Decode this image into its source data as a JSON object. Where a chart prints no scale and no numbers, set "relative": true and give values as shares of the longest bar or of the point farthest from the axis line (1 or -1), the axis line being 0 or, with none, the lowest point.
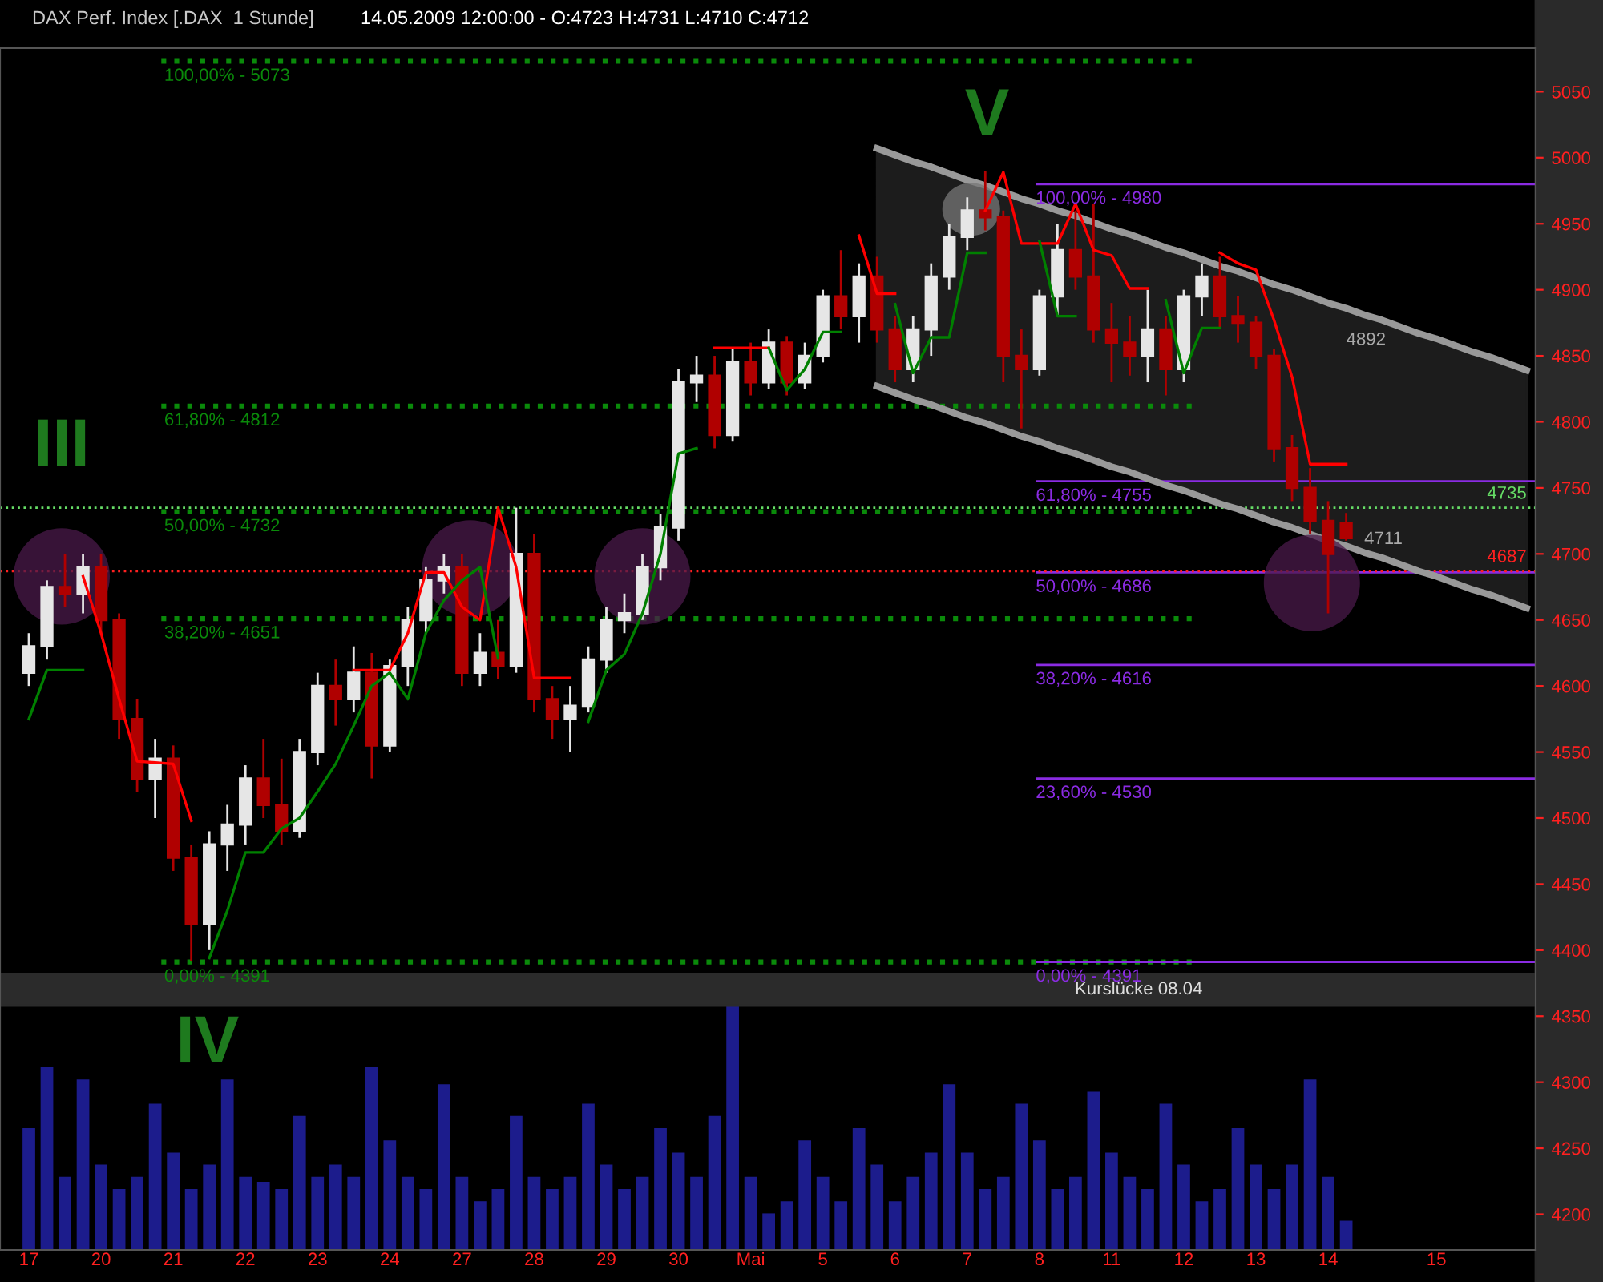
{
  "chart_data": [
    {
      "type": "candlestick",
      "title": "DAX Perf. Index [.DAX  1 Stunde]",
      "subtitle": "14.05.2009 12:00:00 - O:4723 H:4731 L:4710 C:4712",
      "categories": [
        "17",
        null,
        null,
        null,
        "20",
        null,
        null,
        null,
        "21",
        null,
        null,
        null,
        "22",
        null,
        null,
        null,
        "23",
        null,
        null,
        null,
        "24",
        null,
        null,
        null,
        "27",
        null,
        null,
        null,
        "28",
        null,
        null,
        null,
        "29",
        null,
        null,
        null,
        "30",
        null,
        null,
        null,
        "Mai",
        null,
        null,
        null,
        "5",
        null,
        null,
        null,
        "6",
        null,
        null,
        null,
        "7",
        null,
        null,
        null,
        "8",
        null,
        null,
        null,
        "11",
        null,
        null,
        null,
        "12",
        null,
        null,
        null,
        "13",
        null,
        null,
        null,
        "14",
        null,
        null,
        null,
        null,
        null,
        "15",
        null,
        null,
        null,
        null,
        null
      ],
      "ohlc": [
        [
          4610,
          4640,
          4600,
          4630
        ],
        [
          4630,
          4680,
          4620,
          4675
        ],
        [
          4675,
          4700,
          4660,
          4670
        ],
        [
          4670,
          4700,
          4655,
          4690
        ],
        [
          4690,
          4700,
          4640,
          4650
        ],
        [
          4650,
          4655,
          4560,
          4575
        ],
        [
          4575,
          4590,
          4520,
          4530
        ],
        [
          4530,
          4560,
          4500,
          4545
        ],
        [
          4545,
          4555,
          4460,
          4470
        ],
        [
          4470,
          4480,
          4392,
          4420
        ],
        [
          4420,
          4490,
          4400,
          4480
        ],
        [
          4480,
          4510,
          4460,
          4495
        ],
        [
          4495,
          4540,
          4480,
          4530
        ],
        [
          4530,
          4560,
          4500,
          4510
        ],
        [
          4510,
          4545,
          4480,
          4490
        ],
        [
          4490,
          4560,
          4485,
          4550
        ],
        [
          4550,
          4610,
          4540,
          4600
        ],
        [
          4600,
          4620,
          4570,
          4590
        ],
        [
          4590,
          4630,
          4580,
          4610
        ],
        [
          4610,
          4625,
          4530,
          4555
        ],
        [
          4555,
          4620,
          4550,
          4615
        ],
        [
          4615,
          4660,
          4600,
          4650
        ],
        [
          4650,
          4690,
          4640,
          4680
        ],
        [
          4680,
          4700,
          4670,
          4690
        ],
        [
          4690,
          4700,
          4600,
          4610
        ],
        [
          4610,
          4640,
          4600,
          4625
        ],
        [
          4625,
          4650,
          4605,
          4615
        ],
        [
          4615,
          4735,
          4610,
          4700
        ],
        [
          4700,
          4715,
          4580,
          4590
        ],
        [
          4590,
          4600,
          4560,
          4575
        ],
        [
          4575,
          4600,
          4550,
          4585
        ],
        [
          4585,
          4630,
          4580,
          4620
        ],
        [
          4620,
          4660,
          4610,
          4650
        ],
        [
          4650,
          4670,
          4640,
          4655
        ],
        [
          4655,
          4700,
          4650,
          4690
        ],
        [
          4690,
          4730,
          4680,
          4720
        ],
        [
          4720,
          4840,
          4710,
          4830
        ],
        [
          4830,
          4850,
          4815,
          4835
        ],
        [
          4835,
          4850,
          4780,
          4790
        ],
        [
          4790,
          4855,
          4785,
          4845
        ],
        [
          4845,
          4860,
          4820,
          4830
        ],
        [
          4830,
          4870,
          4825,
          4860
        ],
        [
          4860,
          4865,
          4820,
          4830
        ],
        [
          4830,
          4860,
          4825,
          4850
        ],
        [
          4850,
          4900,
          4845,
          4895
        ],
        [
          4895,
          4930,
          4870,
          4880
        ],
        [
          4880,
          4920,
          4860,
          4910
        ],
        [
          4910,
          4925,
          4860,
          4870
        ],
        [
          4870,
          4880,
          4830,
          4840
        ],
        [
          4840,
          4880,
          4830,
          4870
        ],
        [
          4870,
          4920,
          4850,
          4910
        ],
        [
          4910,
          4950,
          4900,
          4940
        ],
        [
          4940,
          4970,
          4930,
          4960
        ],
        [
          4960,
          4990,
          4945,
          4955
        ],
        [
          4955,
          4960,
          4830,
          4850
        ],
        [
          4850,
          4870,
          4795,
          4840
        ],
        [
          4840,
          4900,
          4835,
          4895
        ],
        [
          4895,
          4950,
          4880,
          4930
        ],
        [
          4930,
          4960,
          4900,
          4910
        ],
        [
          4910,
          4965,
          4860,
          4870
        ],
        [
          4870,
          4890,
          4830,
          4860
        ],
        [
          4860,
          4880,
          4835,
          4850
        ],
        [
          4850,
          4900,
          4830,
          4870
        ],
        [
          4870,
          4880,
          4820,
          4840
        ],
        [
          4840,
          4900,
          4830,
          4895
        ],
        [
          4895,
          4920,
          4880,
          4910
        ],
        [
          4910,
          4925,
          4870,
          4880
        ],
        [
          4880,
          4895,
          4860,
          4875
        ],
        [
          4875,
          4880,
          4840,
          4850
        ],
        [
          4850,
          4855,
          4770,
          4780
        ],
        [
          4780,
          4790,
          4740,
          4750
        ],
        [
          4750,
          4765,
          4715,
          4725
        ],
        [
          4725,
          4740,
          4655,
          4700
        ],
        [
          4723,
          4731,
          4710,
          4712
        ],
        null,
        null,
        null,
        null,
        null,
        null,
        null,
        null,
        null,
        null
      ],
      "colors": [
        "#e6e6e6",
        "#e6e6e6",
        "#b00000",
        "#e6e6e6",
        "#b00000",
        "#b00000",
        "#b00000",
        "#e6e6e6",
        "#b00000",
        "#b00000",
        "#e6e6e6",
        "#e6e6e6",
        "#e6e6e6",
        "#b00000",
        "#b00000",
        "#e6e6e6",
        "#e6e6e6",
        "#b00000",
        "#e6e6e6",
        "#b00000",
        "#e6e6e6",
        "#e6e6e6",
        "#e6e6e6",
        "#e6e6e6",
        "#b00000",
        "#e6e6e6",
        "#b00000",
        "#e6e6e6",
        "#b00000",
        "#b00000",
        "#e6e6e6",
        "#e6e6e6",
        "#e6e6e6",
        "#e6e6e6",
        "#e6e6e6",
        "#e6e6e6",
        "#e6e6e6",
        "#e6e6e6",
        "#b00000",
        "#e6e6e6",
        "#b00000",
        "#e6e6e6",
        "#b00000",
        "#e6e6e6",
        "#e6e6e6",
        "#b00000",
        "#e6e6e6",
        "#b00000",
        "#b00000",
        "#e6e6e6",
        "#e6e6e6",
        "#e6e6e6",
        "#e6e6e6",
        "#b00000",
        "#b00000",
        "#b00000",
        "#e6e6e6",
        "#e6e6e6",
        "#b00000",
        "#b00000",
        "#b00000",
        "#b00000",
        "#e6e6e6",
        "#b00000",
        "#e6e6e6",
        "#e6e6e6",
        "#b00000",
        "#b00000",
        "#b00000",
        "#b00000",
        "#b00000",
        "#b00000",
        "#b00000",
        "#b00000",
        null,
        null,
        null,
        null,
        null,
        null,
        null,
        null,
        null,
        null
      ],
      "series": [
        {
          "type": "line",
          "color": "#ff0000",
          "values": [
            null,
            null,
            null,
            4683,
            4640,
            4590,
            4543,
            4542,
            4541,
            4498,
            null,
            null,
            null,
            null,
            null,
            null,
            null,
            null,
            4612,
            4612,
            4612,
            4640,
            4686,
            4686,
            4660,
            4650,
            4735,
            4690,
            4606,
            4606,
            4606,
            null,
            null,
            null,
            null,
            null,
            null,
            null,
            4856,
            4856,
            4856,
            4856,
            null,
            null,
            null,
            null,
            4941,
            4897,
            4897,
            null,
            null,
            null,
            null,
            4960,
            4989,
            4935,
            4935,
            4935,
            4965,
            4930,
            4926,
            4901,
            4901,
            null,
            null,
            null,
            4928,
            4920,
            4915,
            4877,
            4834,
            4768,
            4768,
            4768,
            null,
            null,
            null,
            null,
            null,
            null,
            null,
            null,
            null,
            null
          ]
        },
        {
          "type": "line",
          "color": "#008000",
          "values": [
            4575,
            4612,
            4612,
            4612,
            null,
            null,
            null,
            null,
            null,
            null,
            4394,
            4430,
            4474,
            4474,
            4492,
            4500,
            4520,
            4541,
            4570,
            4600,
            4610,
            4590,
            4640,
            4665,
            4680,
            4690,
            4621,
            null,
            null,
            null,
            null,
            4573,
            4612,
            4624,
            4655,
            4700,
            4776,
            4780,
            null,
            null,
            null,
            4856,
            4824,
            4840,
            4868,
            4868,
            null,
            null,
            4889,
            4837,
            4864,
            4864,
            4928,
            4928,
            null,
            null,
            4937,
            4880,
            4880,
            null,
            null,
            null,
            null,
            4892,
            4837,
            4871,
            4871,
            null,
            null,
            null,
            null,
            null,
            null,
            null,
            null,
            null,
            null,
            null,
            null,
            null,
            null,
            null,
            null,
            null
          ]
        },
        {
          "type": "line",
          "color": "#999999",
          "values": [
            null,
            null,
            null,
            null,
            null,
            null,
            null,
            null,
            null,
            null,
            null,
            null,
            null,
            null,
            null,
            null,
            null,
            null,
            null,
            null,
            null,
            null,
            null,
            null,
            null,
            null,
            null,
            null,
            null,
            null,
            null,
            null,
            null,
            null,
            null,
            null,
            null,
            null,
            null,
            null,
            null,
            null,
            null,
            null,
            null,
            null,
            null,
            5007,
            5002,
            4997,
            4993,
            4988,
            4983,
            4979,
            4974,
            4969,
            4965,
            4960,
            4956,
            4951,
            4946,
            4942,
            4937,
            4932,
            4928,
            4923,
            4918,
            4914,
            4909,
            4904,
            4900,
            4895,
            4890,
            4886,
            4881,
            4877,
            4872,
            4867,
            4863,
            4858,
            4853,
            4849,
            4844,
            4839
          ]
        },
        {
          "type": "line",
          "color": "#999999",
          "values": [
            null,
            null,
            null,
            null,
            null,
            null,
            null,
            null,
            null,
            null,
            null,
            null,
            null,
            null,
            null,
            null,
            null,
            null,
            null,
            null,
            null,
            null,
            null,
            null,
            null,
            null,
            null,
            null,
            null,
            null,
            null,
            null,
            null,
            null,
            null,
            null,
            null,
            null,
            null,
            null,
            null,
            null,
            null,
            null,
            null,
            null,
            null,
            4827,
            4822,
            4817,
            4813,
            4808,
            4803,
            4799,
            4794,
            4789,
            4785,
            4780,
            4776,
            4771,
            4766,
            4762,
            4757,
            4752,
            4748,
            4743,
            4738,
            4734,
            4729,
            4724,
            4720,
            4715,
            4710,
            4706,
            4701,
            4697,
            4692,
            4687,
            4683,
            4678,
            4673,
            4669,
            4664,
            4659
          ]
        }
      ],
      "ylim": [
        4173,
        5083
      ],
      "yticks": [
        4200,
        4250,
        4300,
        4350,
        4400,
        4450,
        4500,
        4550,
        4600,
        4650,
        4700,
        4750,
        4800,
        4850,
        4900,
        4950,
        5000,
        5050
      ],
      "grid": false,
      "ref_lines": [
        {
          "axis": "y",
          "value": 5073,
          "color": "#0a8a0a",
          "line_style": "dotted"
        },
        {
          "axis": "y",
          "value": 4812,
          "color": "#0a8a0a",
          "line_style": "dotted"
        },
        {
          "axis": "y",
          "value": 4732,
          "color": "#0a8a0a",
          "line_style": "dotted"
        },
        {
          "axis": "y",
          "value": 4651,
          "color": "#0a8a0a",
          "line_style": "dotted"
        },
        {
          "axis": "y",
          "value": 4391,
          "color": "#0a8a0a",
          "line_style": "dotted"
        },
        {
          "axis": "y",
          "value": 4980,
          "color": "#8a2be2",
          "line_style": "solid"
        },
        {
          "axis": "y",
          "value": 4755,
          "color": "#8a2be2",
          "line_style": "solid"
        },
        {
          "axis": "y",
          "value": 4686,
          "color": "#8a2be2",
          "line_style": "solid"
        },
        {
          "axis": "y",
          "value": 4616,
          "color": "#8a2be2",
          "line_style": "solid"
        },
        {
          "axis": "y",
          "value": 4530,
          "color": "#8a2be2",
          "line_style": "solid"
        },
        {
          "axis": "y",
          "value": 4391,
          "color": "#8a2be2",
          "line_style": "solid"
        },
        {
          "axis": "y",
          "value": 4735,
          "label": "4735",
          "color": "#66dd66",
          "line_style": "dotted"
        },
        {
          "axis": "y",
          "value": 4687,
          "label": "4687",
          "color": "#ff2020",
          "line_style": "dotted"
        }
      ],
      "bands": [
        {
          "axis": "y",
          "from": 4358,
          "to": 4382,
          "label": "Kurslücke 08.04",
          "color": "#2b2b2b"
        }
      ],
      "annotations": [
        "III",
        "V",
        "IV",
        "4892",
        "4711",
        "100,00% - 5073",
        "61,80% - 4812",
        "50,00% - 4732",
        "38,20% - 4651",
        "0,00% - 4391",
        "100,00% - 4980",
        "61,80% - 4755",
        "50,00% - 4686",
        "38,20% - 4616",
        "23,60% - 4530",
        "0,00% - 4391"
      ]
    },
    {
      "type": "bar",
      "relative": true,
      "color": "#1c1c8c",
      "categories": [
        null,
        null,
        null,
        null,
        null,
        null,
        null,
        null,
        null,
        null,
        null,
        null,
        null,
        null,
        null,
        null,
        null,
        null,
        null,
        null,
        null,
        null,
        null,
        null,
        null,
        null,
        null,
        null,
        null,
        null,
        null,
        null,
        null,
        null,
        null,
        null,
        null,
        null,
        null,
        null,
        null,
        null,
        null,
        null,
        null,
        null,
        null,
        null,
        null,
        null,
        null,
        null,
        null,
        null,
        null,
        null,
        null,
        null,
        null,
        null,
        null,
        null,
        null,
        null,
        null,
        null,
        null,
        null,
        null,
        null,
        null,
        null,
        null,
        null
      ],
      "values": [
        0.5,
        0.75,
        0.3,
        0.7,
        0.35,
        0.25,
        0.3,
        0.6,
        0.4,
        0.25,
        0.35,
        0.7,
        0.3,
        0.28,
        0.25,
        0.55,
        0.3,
        0.35,
        0.3,
        0.75,
        0.45,
        0.3,
        0.25,
        0.68,
        0.3,
        0.2,
        0.25,
        0.55,
        0.3,
        0.25,
        0.3,
        0.6,
        0.35,
        0.25,
        0.3,
        0.5,
        0.4,
        0.3,
        0.55,
        1.0,
        0.3,
        0.15,
        0.2,
        0.45,
        0.3,
        0.2,
        0.5,
        0.35,
        0.2,
        0.3,
        0.4,
        0.68,
        0.4,
        0.25,
        0.3,
        0.6,
        0.45,
        0.25,
        0.3,
        0.65,
        0.4,
        0.3,
        0.25,
        0.6,
        0.35,
        0.2,
        0.25,
        0.5,
        0.35,
        0.25,
        0.35,
        0.7,
        0.3,
        0.12
      ]
    }
  ]
}
